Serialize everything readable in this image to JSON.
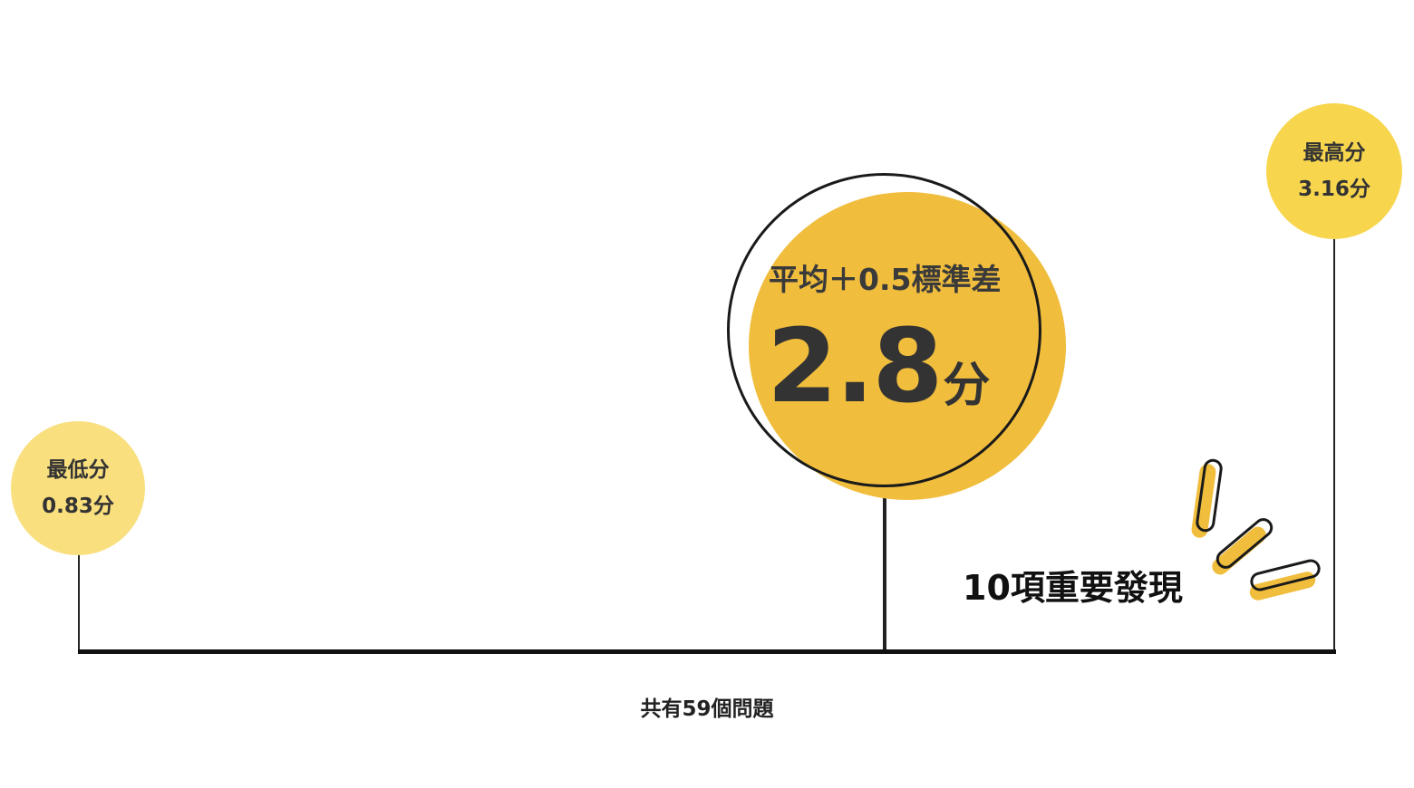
{
  "range": {
    "min": {
      "label": "最低分",
      "value": 0.83,
      "value_text": "0.83分"
    },
    "max": {
      "label": "最高分",
      "value": 3.16,
      "value_text": "3.16分"
    }
  },
  "highlight": {
    "label": "平均＋0.5標準差",
    "value": 2.8,
    "value_text": "2.8",
    "unit": "分"
  },
  "findings_text": "10項重要發現",
  "total_text": "共有59個問題",
  "colors": {
    "min_dot": "#f9df7e",
    "max_dot": "#f7d64e",
    "highlight_fill": "#f0bd3d",
    "line": "#111111",
    "text": "#333333"
  }
}
